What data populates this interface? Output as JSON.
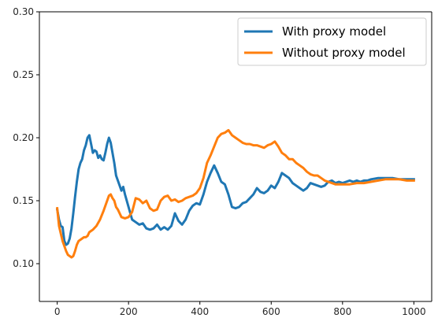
{
  "chart_data": {
    "type": "line",
    "title": "",
    "xlabel": "",
    "ylabel": "",
    "xlim": [
      -50,
      1050
    ],
    "ylim": [
      0.07,
      0.3
    ],
    "x_ticks": [
      0,
      200,
      400,
      600,
      800,
      1000
    ],
    "y_ticks": [
      0.1,
      0.15,
      0.2,
      0.25,
      0.3
    ],
    "x_tick_labels": [
      "0",
      "200",
      "400",
      "600",
      "800",
      "1000"
    ],
    "y_tick_labels": [
      "0.10",
      "0.15",
      "0.20",
      "0.25",
      "0.30"
    ],
    "grid": false,
    "legend_position": "upper right",
    "series": [
      {
        "name": "With proxy model",
        "color": "#1f77b4",
        "x": [
          0,
          5,
          10,
          15,
          20,
          25,
          30,
          35,
          40,
          45,
          50,
          55,
          60,
          65,
          70,
          75,
          80,
          85,
          90,
          95,
          100,
          105,
          110,
          115,
          120,
          125,
          130,
          135,
          140,
          145,
          150,
          155,
          160,
          165,
          170,
          175,
          180,
          185,
          190,
          200,
          210,
          220,
          230,
          240,
          250,
          260,
          270,
          280,
          290,
          300,
          310,
          320,
          330,
          340,
          350,
          360,
          370,
          380,
          390,
          400,
          410,
          420,
          430,
          440,
          450,
          460,
          470,
          480,
          490,
          500,
          510,
          520,
          530,
          540,
          550,
          560,
          570,
          580,
          590,
          600,
          610,
          620,
          630,
          640,
          650,
          660,
          670,
          680,
          690,
          700,
          710,
          720,
          730,
          740,
          750,
          760,
          770,
          780,
          790,
          800,
          810,
          820,
          830,
          840,
          850,
          860,
          870,
          880,
          900,
          920,
          940,
          960,
          980,
          1000
        ],
        "values": [
          0.143,
          0.135,
          0.13,
          0.129,
          0.118,
          0.115,
          0.116,
          0.12,
          0.128,
          0.14,
          0.153,
          0.165,
          0.175,
          0.18,
          0.183,
          0.19,
          0.194,
          0.2,
          0.202,
          0.195,
          0.188,
          0.19,
          0.189,
          0.184,
          0.186,
          0.183,
          0.182,
          0.188,
          0.195,
          0.2,
          0.196,
          0.188,
          0.18,
          0.17,
          0.166,
          0.162,
          0.158,
          0.161,
          0.155,
          0.145,
          0.135,
          0.133,
          0.131,
          0.132,
          0.128,
          0.127,
          0.128,
          0.131,
          0.127,
          0.129,
          0.127,
          0.13,
          0.14,
          0.134,
          0.131,
          0.135,
          0.142,
          0.146,
          0.148,
          0.147,
          0.155,
          0.165,
          0.172,
          0.178,
          0.172,
          0.165,
          0.163,
          0.155,
          0.145,
          0.144,
          0.145,
          0.148,
          0.149,
          0.152,
          0.155,
          0.16,
          0.157,
          0.156,
          0.158,
          0.162,
          0.16,
          0.165,
          0.172,
          0.17,
          0.168,
          0.164,
          0.162,
          0.16,
          0.158,
          0.16,
          0.164,
          0.163,
          0.162,
          0.161,
          0.162,
          0.165,
          0.166,
          0.164,
          0.165,
          0.164,
          0.165,
          0.166,
          0.165,
          0.166,
          0.165,
          0.166,
          0.166,
          0.167,
          0.168,
          0.168,
          0.168,
          0.167,
          0.167,
          0.167
        ]
      },
      {
        "name": "Without proxy model",
        "color": "#ff7f0e",
        "x": [
          0,
          5,
          10,
          15,
          20,
          25,
          30,
          35,
          40,
          45,
          50,
          55,
          60,
          65,
          70,
          75,
          80,
          85,
          90,
          95,
          100,
          110,
          120,
          130,
          140,
          145,
          150,
          155,
          160,
          165,
          170,
          175,
          180,
          190,
          200,
          210,
          220,
          230,
          240,
          250,
          260,
          270,
          280,
          290,
          300,
          310,
          320,
          330,
          340,
          350,
          360,
          370,
          380,
          390,
          400,
          410,
          420,
          430,
          440,
          450,
          460,
          470,
          480,
          490,
          500,
          510,
          520,
          530,
          540,
          550,
          560,
          570,
          580,
          590,
          600,
          610,
          620,
          630,
          640,
          650,
          660,
          670,
          680,
          690,
          700,
          710,
          720,
          730,
          740,
          750,
          760,
          770,
          780,
          790,
          800,
          820,
          840,
          860,
          880,
          900,
          920,
          940,
          960,
          980,
          1000
        ],
        "values": [
          0.144,
          0.13,
          0.124,
          0.118,
          0.114,
          0.11,
          0.107,
          0.106,
          0.105,
          0.106,
          0.11,
          0.115,
          0.118,
          0.119,
          0.12,
          0.121,
          0.121,
          0.122,
          0.125,
          0.126,
          0.127,
          0.13,
          0.135,
          0.142,
          0.15,
          0.154,
          0.155,
          0.152,
          0.15,
          0.145,
          0.143,
          0.14,
          0.137,
          0.136,
          0.137,
          0.141,
          0.152,
          0.151,
          0.148,
          0.15,
          0.144,
          0.142,
          0.143,
          0.15,
          0.153,
          0.154,
          0.15,
          0.151,
          0.149,
          0.15,
          0.152,
          0.153,
          0.154,
          0.156,
          0.16,
          0.168,
          0.18,
          0.186,
          0.193,
          0.2,
          0.203,
          0.204,
          0.206,
          0.202,
          0.2,
          0.198,
          0.196,
          0.195,
          0.195,
          0.194,
          0.194,
          0.193,
          0.192,
          0.194,
          0.195,
          0.197,
          0.193,
          0.188,
          0.186,
          0.183,
          0.183,
          0.18,
          0.178,
          0.176,
          0.173,
          0.171,
          0.17,
          0.17,
          0.168,
          0.166,
          0.165,
          0.164,
          0.163,
          0.163,
          0.163,
          0.163,
          0.164,
          0.164,
          0.165,
          0.166,
          0.167,
          0.167,
          0.167,
          0.166,
          0.166
        ]
      }
    ]
  }
}
